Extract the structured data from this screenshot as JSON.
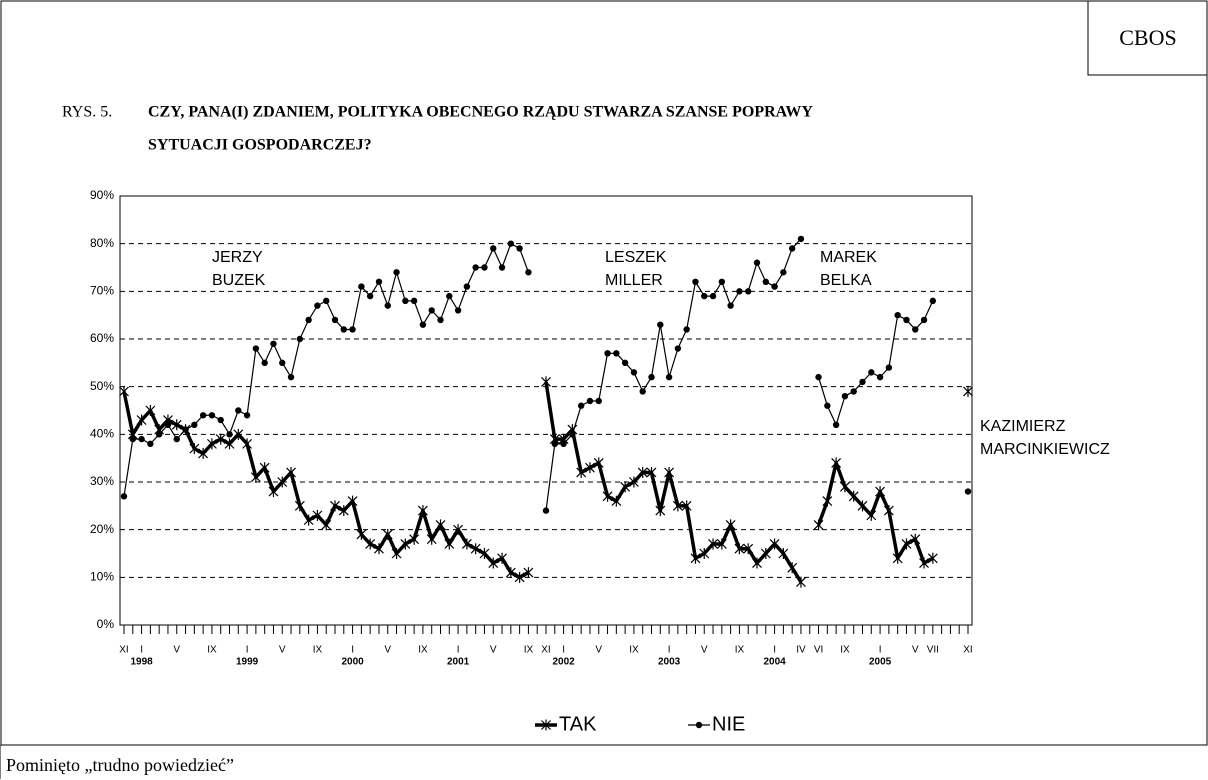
{
  "chart_data": {
    "type": "line",
    "source": "CBOS",
    "figure_label": "RYS. 5.",
    "title": [
      "CZY, PANA(I) ZDANIEM, POLITYKA OBECNEGO RZĄDU STWARZA SZANSE POPRAWY",
      "SYTUACJI GOSPODARCZEJ?"
    ],
    "note": "Pominięto „trudno powiedzieć”",
    "categories": [
      "XI",
      null,
      "I",
      null,
      null,
      null,
      "V",
      null,
      null,
      null,
      "IX",
      null,
      null,
      null,
      "I",
      null,
      null,
      null,
      "V",
      null,
      null,
      null,
      "IX",
      null,
      null,
      null,
      "I",
      null,
      null,
      null,
      "V",
      null,
      null,
      null,
      "IX",
      null,
      null,
      null,
      "I",
      null,
      null,
      null,
      "V",
      null,
      null,
      null,
      "IX",
      null,
      "XI",
      null,
      "I",
      null,
      null,
      null,
      "V",
      null,
      null,
      null,
      "IX",
      null,
      null,
      null,
      "I",
      null,
      null,
      null,
      "V",
      null,
      null,
      null,
      "IX",
      null,
      null,
      null,
      "I",
      null,
      null,
      "IV",
      null,
      "VI",
      null,
      null,
      "IX",
      null,
      null,
      null,
      "I",
      null,
      null,
      null,
      "V",
      null,
      "VII",
      null,
      null,
      null,
      "XI"
    ],
    "category_years": [
      null,
      null,
      "1998",
      null,
      null,
      null,
      null,
      null,
      null,
      null,
      null,
      null,
      null,
      null,
      "1999",
      null,
      null,
      null,
      null,
      null,
      null,
      null,
      null,
      null,
      null,
      null,
      "2000",
      null,
      null,
      null,
      null,
      null,
      null,
      null,
      null,
      null,
      null,
      null,
      "2001",
      null,
      null,
      null,
      null,
      null,
      null,
      null,
      null,
      null,
      null,
      null,
      "2002",
      null,
      null,
      null,
      null,
      null,
      null,
      null,
      null,
      null,
      null,
      null,
      "2003",
      null,
      null,
      null,
      null,
      null,
      null,
      null,
      null,
      null,
      null,
      null,
      "2004",
      null,
      null,
      null,
      null,
      null,
      null,
      null,
      null,
      null,
      null,
      null,
      "2005",
      null,
      null,
      null,
      null,
      null,
      null,
      null,
      null,
      null,
      null
    ],
    "series": [
      {
        "name": "TAK",
        "color": "#000000",
        "marker": "star",
        "values": [
          49,
          40,
          43,
          45,
          41,
          43,
          42,
          41,
          37,
          36,
          38,
          39,
          38,
          40,
          38,
          31,
          33,
          28,
          30,
          32,
          25,
          22,
          23,
          21,
          25,
          24,
          26,
          19,
          17,
          16,
          19,
          15,
          17,
          18,
          24,
          18,
          21,
          17,
          20,
          17,
          16,
          15,
          13,
          14,
          11,
          10,
          11,
          null,
          51,
          39,
          39,
          41,
          32,
          33,
          34,
          27,
          26,
          29,
          30,
          32,
          32,
          24,
          32,
          25,
          25,
          14,
          15,
          17,
          17,
          21,
          16,
          16,
          13,
          15,
          17,
          15,
          12,
          9,
          null,
          21,
          26,
          34,
          29,
          27,
          25,
          23,
          28,
          24,
          14,
          17,
          18,
          13,
          14,
          null,
          null,
          null,
          49
        ]
      },
      {
        "name": "NIE",
        "color": "#000000",
        "marker": "circle",
        "values": [
          27,
          39,
          39,
          38,
          40,
          42,
          39,
          41,
          42,
          44,
          44,
          43,
          40,
          45,
          44,
          58,
          55,
          59,
          55,
          52,
          60,
          64,
          67,
          68,
          64,
          62,
          62,
          71,
          69,
          72,
          67,
          74,
          68,
          68,
          63,
          66,
          64,
          69,
          66,
          71,
          75,
          75,
          79,
          75,
          80,
          79,
          74,
          null,
          24,
          38,
          38,
          40,
          46,
          47,
          47,
          57,
          57,
          55,
          53,
          49,
          52,
          63,
          52,
          58,
          62,
          72,
          69,
          69,
          72,
          67,
          70,
          70,
          76,
          72,
          71,
          74,
          79,
          81,
          null,
          52,
          46,
          42,
          48,
          49,
          51,
          53,
          52,
          54,
          65,
          64,
          62,
          64,
          68,
          null,
          null,
          null,
          28
        ]
      }
    ],
    "annotations": [
      [
        "JERZY",
        "BUZEK"
      ],
      [
        "LESZEK",
        "MILLER"
      ],
      [
        "MAREK",
        "BELKA"
      ],
      [
        "KAZIMIERZ",
        "MARCINKIEWICZ"
      ]
    ],
    "ylim": [
      0,
      90
    ],
    "yticks": [
      {
        "value": 0,
        "label": "0%"
      },
      {
        "value": 10,
        "label": "10%"
      },
      {
        "value": 20,
        "label": "20%"
      },
      {
        "value": 30,
        "label": "30%"
      },
      {
        "value": 40,
        "label": "40%"
      },
      {
        "value": 50,
        "label": "50%"
      },
      {
        "value": 60,
        "label": "60%"
      },
      {
        "value": 70,
        "label": "70%"
      },
      {
        "value": 80,
        "label": "80%"
      },
      {
        "value": 90,
        "label": "90%"
      }
    ],
    "grid": true
  }
}
